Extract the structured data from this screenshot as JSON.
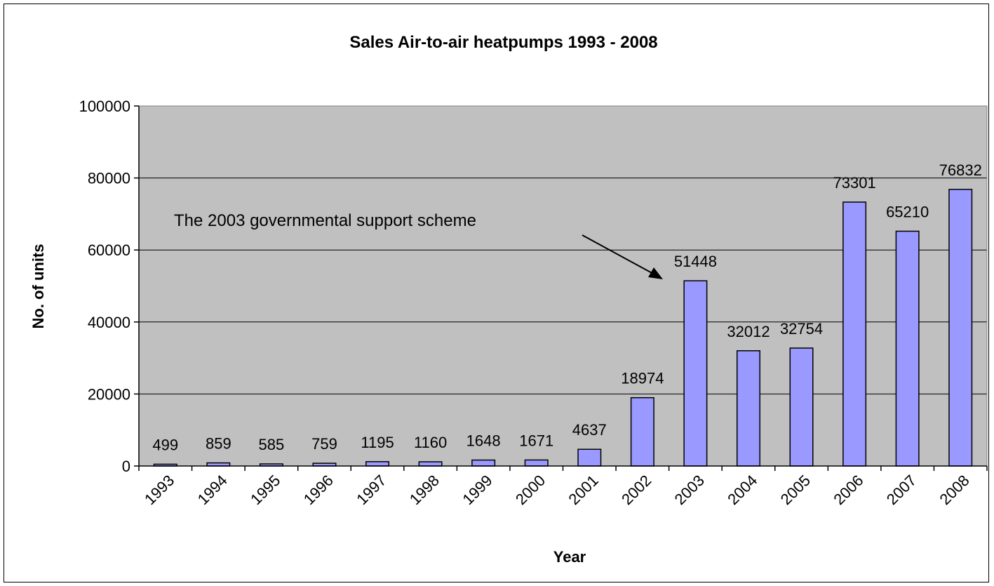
{
  "chart_data": {
    "type": "bar",
    "title": "Sales Air-to-air heatpumps 1993 - 2008",
    "xlabel": "Year",
    "ylabel": "No. of units",
    "categories": [
      "1993",
      "1994",
      "1995",
      "1996",
      "1997",
      "1998",
      "1999",
      "2000",
      "2001",
      "2002",
      "2003",
      "2004",
      "2005",
      "2006",
      "2007",
      "2008"
    ],
    "values": [
      499,
      859,
      585,
      759,
      1195,
      1160,
      1648,
      1671,
      4637,
      18974,
      51448,
      32012,
      32754,
      73301,
      65210,
      76832
    ],
    "ylim": [
      0,
      100000
    ],
    "yticks": [
      "0",
      "20000",
      "40000",
      "60000",
      "80000",
      "100000"
    ],
    "grid": true,
    "legend": "none",
    "bar_color": "#9999ff",
    "plot_background": "#c0c0c0",
    "annotation": {
      "text": "The 2003 governmental support scheme",
      "target_category": "2003"
    }
  }
}
